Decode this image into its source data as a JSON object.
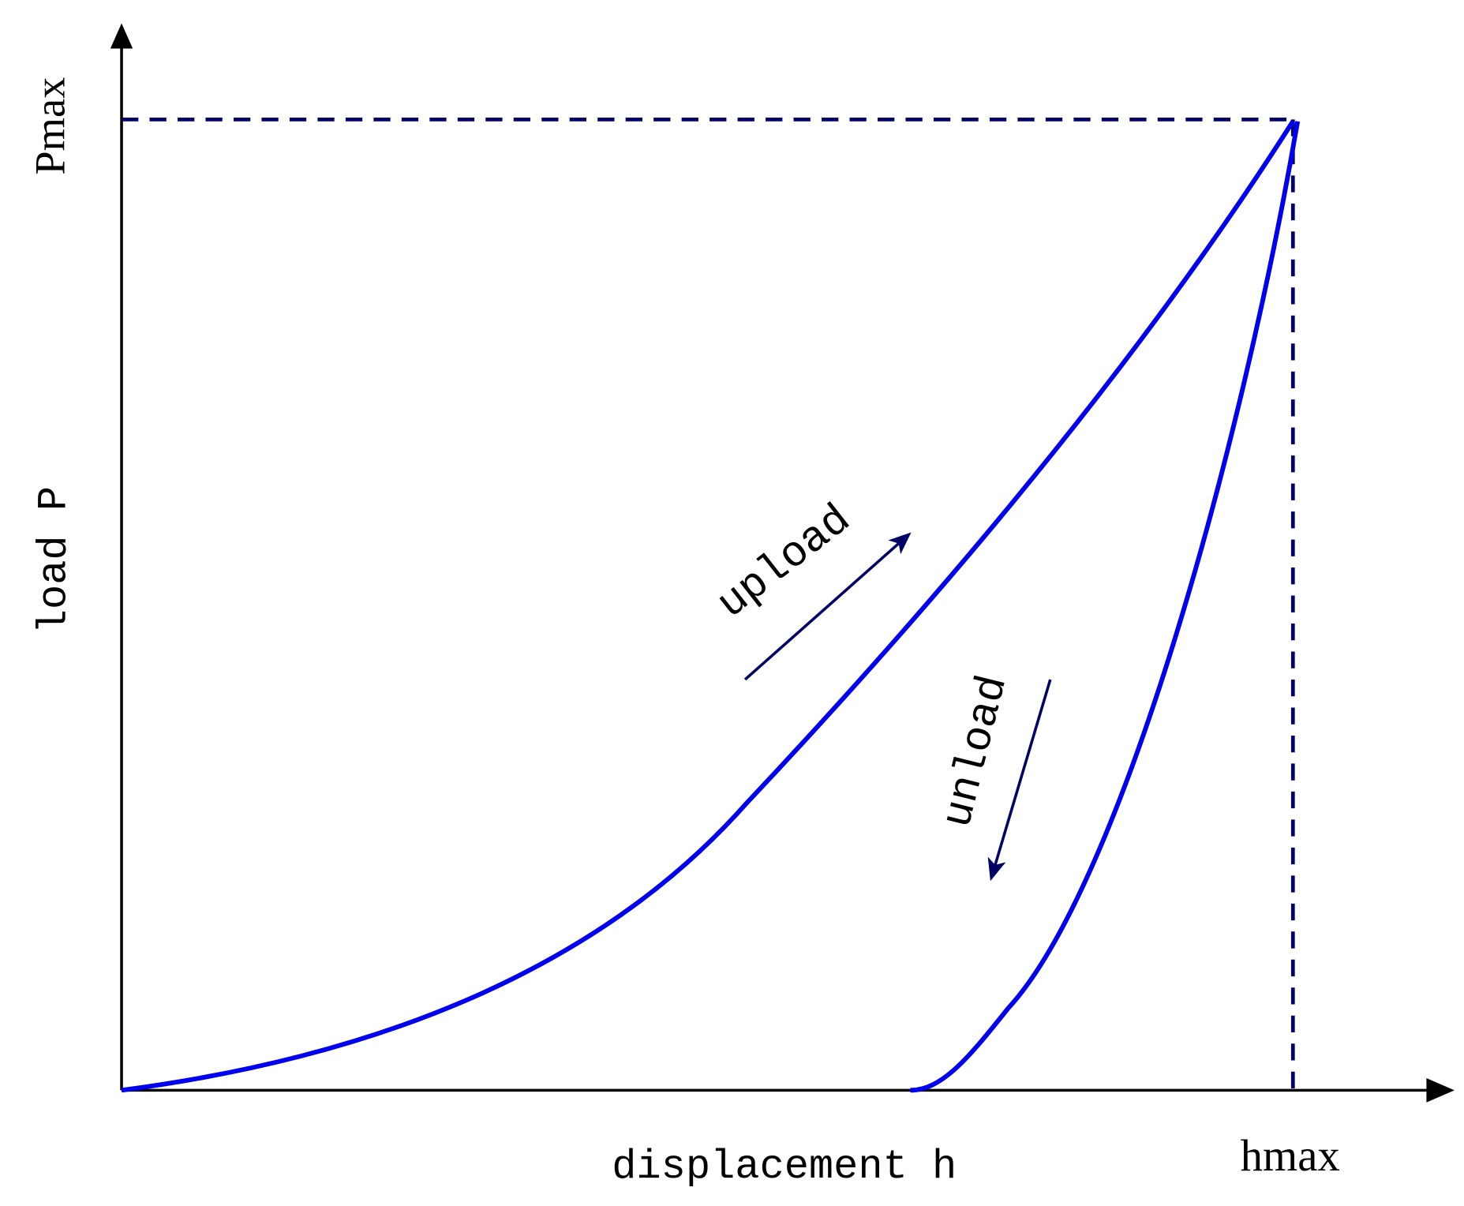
{
  "axes": {
    "y_max_label": "Pmax",
    "y_label": "load P",
    "x_label": "displacement h",
    "x_max_label": "hmax"
  },
  "curves": {
    "loading_label": "upload",
    "unloading_label": "unload"
  }
}
